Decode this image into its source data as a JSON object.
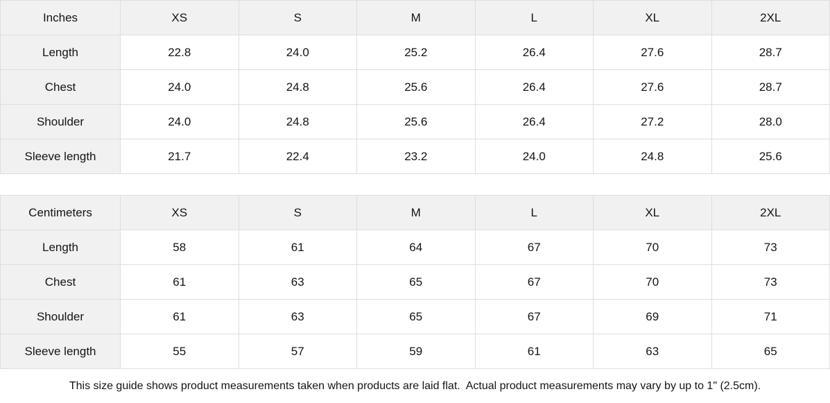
{
  "colors": {
    "header_cell_background": "#f1f1f1",
    "cell_border": "#dedede",
    "text": "#141414",
    "page_background": "#ffffff"
  },
  "size_columns": [
    "XS",
    "S",
    "M",
    "L",
    "XL",
    "2XL"
  ],
  "tables": [
    {
      "unit_label": "Inches",
      "rows": [
        {
          "label": "Length",
          "values": [
            "22.8",
            "24.0",
            "25.2",
            "26.4",
            "27.6",
            "28.7"
          ]
        },
        {
          "label": "Chest",
          "values": [
            "24.0",
            "24.8",
            "25.6",
            "26.4",
            "27.6",
            "28.7"
          ]
        },
        {
          "label": "Shoulder",
          "values": [
            "24.0",
            "24.8",
            "25.6",
            "26.4",
            "27.2",
            "28.0"
          ]
        },
        {
          "label": "Sleeve length",
          "values": [
            "21.7",
            "22.4",
            "23.2",
            "24.0",
            "24.8",
            "25.6"
          ]
        }
      ]
    },
    {
      "unit_label": "Centimeters",
      "rows": [
        {
          "label": "Length",
          "values": [
            "58",
            "61",
            "64",
            "67",
            "70",
            "73"
          ]
        },
        {
          "label": "Chest",
          "values": [
            "61",
            "63",
            "65",
            "67",
            "70",
            "73"
          ]
        },
        {
          "label": "Shoulder",
          "values": [
            "61",
            "63",
            "65",
            "67",
            "69",
            "71"
          ]
        },
        {
          "label": "Sleeve length",
          "values": [
            "55",
            "57",
            "59",
            "61",
            "63",
            "65"
          ]
        }
      ]
    }
  ],
  "footer_note": "This size guide shows product measurements taken when products are laid flat.  Actual product measurements may vary by up to 1\" (2.5cm)."
}
